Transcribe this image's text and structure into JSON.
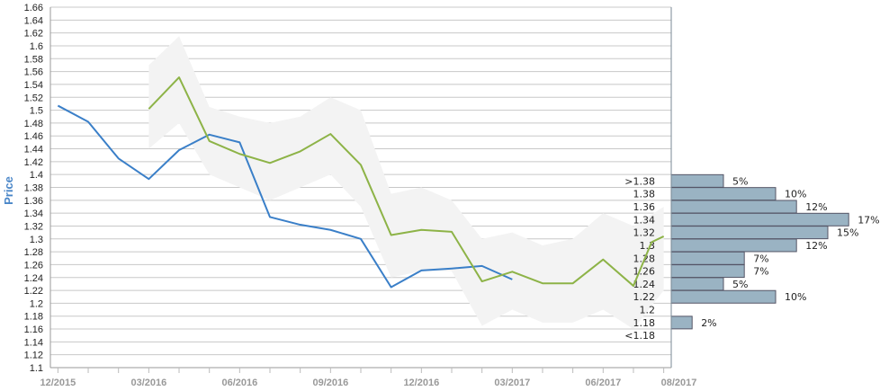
{
  "chart_data": {
    "type": "line",
    "ylabel": "Price",
    "ylim": [
      1.1,
      1.66
    ],
    "y_ticks": [
      "1.1",
      "1.12",
      "1.14",
      "1.16",
      "1.18",
      "1.2",
      "1.22",
      "1.24",
      "1.26",
      "1.28",
      "1.3",
      "1.32",
      "1.34",
      "1.36",
      "1.38",
      "1.4",
      "1.42",
      "1.44",
      "1.46",
      "1.48",
      "1.5",
      "1.52",
      "1.54",
      "1.56",
      "1.58",
      "1.6",
      "1.62",
      "1.64",
      "1.66"
    ],
    "x_tick_labels": [
      "12/2015",
      "03/2016",
      "06/2016",
      "09/2016",
      "12/2016",
      "03/2017",
      "06/2017",
      "08/2017"
    ],
    "x_tick_positions": [
      0,
      3,
      6,
      9,
      12,
      15,
      18,
      20.5
    ],
    "x_range": [
      -0.1,
      20.1
    ],
    "series": [
      {
        "name": "",
        "color": "#3a7fc8",
        "x": [
          0,
          1,
          2,
          3,
          4,
          5,
          6,
          7,
          8,
          9,
          10,
          11,
          12,
          13,
          14,
          15
        ],
        "values": [
          1.507,
          1.482,
          1.425,
          1.393,
          1.438,
          1.462,
          1.45,
          1.334,
          1.322,
          1.314,
          1.3,
          1.225,
          1.251,
          1.254,
          1.258,
          1.237
        ]
      },
      {
        "name": "",
        "color": "#8db347",
        "x": [
          3,
          4,
          5,
          6,
          7,
          8,
          9,
          10,
          11,
          12,
          13,
          14,
          15,
          16,
          17,
          18,
          19,
          19.6,
          20
        ],
        "values": [
          1.502,
          1.551,
          1.452,
          1.432,
          1.418,
          1.436,
          1.463,
          1.415,
          1.306,
          1.314,
          1.311,
          1.234,
          1.249,
          1.231,
          1.231,
          1.268,
          1.227,
          1.295,
          1.304
        ]
      }
    ],
    "band": {
      "color": "#f3f3f3",
      "x": [
        3,
        4,
        5,
        6,
        7,
        8,
        9,
        10,
        11,
        12,
        13,
        14,
        15,
        16,
        17,
        18,
        19,
        20
      ],
      "upper": [
        1.57,
        1.615,
        1.505,
        1.49,
        1.48,
        1.49,
        1.52,
        1.5,
        1.37,
        1.38,
        1.36,
        1.3,
        1.31,
        1.29,
        1.3,
        1.34,
        1.32,
        1.35
      ],
      "lower": [
        1.44,
        1.48,
        1.4,
        1.38,
        1.36,
        1.38,
        1.4,
        1.35,
        1.24,
        1.25,
        1.25,
        1.165,
        1.19,
        1.17,
        1.17,
        1.19,
        1.16,
        1.22
      ]
    },
    "histogram": {
      "color": "#9ab3c3",
      "bins": [
        {
          "label": ">1.38",
          "value": 5,
          "pct": "5%",
          "y": 1.39
        },
        {
          "label": "1.38",
          "value": 10,
          "pct": "10%",
          "y": 1.37
        },
        {
          "label": "1.36",
          "value": 12,
          "pct": "12%",
          "y": 1.35
        },
        {
          "label": "1.34",
          "value": 17,
          "pct": "17%",
          "y": 1.33
        },
        {
          "label": "1.32",
          "value": 15,
          "pct": "15%",
          "y": 1.31
        },
        {
          "label": "1.3",
          "value": 12,
          "pct": "12%",
          "y": 1.29
        },
        {
          "label": "1.28",
          "value": 7,
          "pct": "7%",
          "y": 1.27
        },
        {
          "label": "1.26",
          "value": 7,
          "pct": "7%",
          "y": 1.25
        },
        {
          "label": "1.24",
          "value": 5,
          "pct": "5%",
          "y": 1.23
        },
        {
          "label": "1.22",
          "value": 10,
          "pct": "10%",
          "y": 1.21
        },
        {
          "label": "1.2",
          "value": 0,
          "pct": "",
          "y": 1.19
        },
        {
          "label": "1.18",
          "value": 2,
          "pct": "2%",
          "y": 1.17
        },
        {
          "label": "<1.18",
          "value": 0,
          "pct": "",
          "y": 1.15
        }
      ]
    },
    "grid": true
  }
}
